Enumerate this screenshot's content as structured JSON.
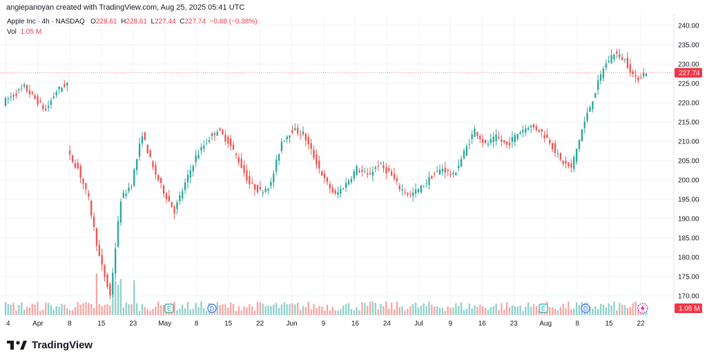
{
  "caption": "angiepanoyan created with TradingView.com, Aug 25, 2025 05:41 UTC",
  "legend": {
    "symbol": "Apple Inc · 4h · NASDAQ",
    "o_label": "O",
    "o": "228.61",
    "h_label": "H",
    "h": "228.61",
    "l_label": "L",
    "l": "227.44",
    "c_label": "C",
    "c": "227.74",
    "change": "−0.88 (−0.38%)",
    "vol_label": "Vol",
    "vol": "1.05 M"
  },
  "brand": {
    "name": "TradingView"
  },
  "colors": {
    "up": "#26a69a",
    "down": "#ef5350",
    "up_vol": "#8fd1c9",
    "down_vol": "#f5a6a4",
    "last": "#f23645"
  },
  "chart_data": {
    "type": "candlestick",
    "title": "Apple Inc · 4h · NASDAQ",
    "ylim": [
      165,
      243
    ],
    "y_ticks": [
      170,
      175,
      180,
      185,
      190,
      195,
      200,
      205,
      210,
      215,
      220,
      225,
      230,
      235,
      240
    ],
    "y_tick_labels": [
      "170.00",
      "175.00",
      "180.00",
      "185.00",
      "190.00",
      "195.00",
      "200.00",
      "205.00",
      "210.00",
      "215.00",
      "220.00",
      "225.00",
      "230.00",
      "235.00",
      "240.00"
    ],
    "x_ticks": [
      "4",
      "Apr",
      "8",
      "15",
      "23",
      "May",
      "8",
      "15",
      "22",
      "Jun",
      "9",
      "16",
      "24",
      "Jul",
      "9",
      "16",
      "23",
      "Aug",
      "8",
      "15",
      "22"
    ],
    "last_price": 227.74,
    "last_price_label": "227.74",
    "last_volume_label": "1.05 M",
    "event_markers": [
      {
        "label": "E",
        "date": "May 1"
      },
      {
        "label": "D",
        "date": "May 12"
      },
      {
        "label": "E",
        "date": "Jul 31"
      },
      {
        "label": "D",
        "date": "Aug 11"
      }
    ],
    "anchors": [
      [
        220,
        222
      ],
      [
        222,
        224
      ],
      [
        224,
        221
      ],
      [
        221,
        218
      ],
      [
        218,
        223
      ],
      [
        223,
        225
      ],
      [
        207,
        203
      ],
      [
        203,
        195
      ],
      [
        195,
        180
      ],
      [
        180,
        170
      ],
      [
        170,
        195
      ],
      [
        195,
        199
      ],
      [
        199,
        212
      ],
      [
        212,
        203
      ],
      [
        203,
        197
      ],
      [
        197,
        192
      ],
      [
        192,
        199
      ],
      [
        199,
        206
      ],
      [
        206,
        210
      ],
      [
        210,
        213
      ],
      [
        213,
        210
      ],
      [
        210,
        205
      ],
      [
        205,
        199
      ],
      [
        199,
        197
      ],
      [
        197,
        199
      ],
      [
        199,
        210
      ],
      [
        210,
        213
      ],
      [
        213,
        212
      ],
      [
        212,
        206
      ],
      [
        206,
        200
      ],
      [
        200,
        196
      ],
      [
        196,
        199
      ],
      [
        199,
        203
      ],
      [
        203,
        201
      ],
      [
        201,
        204
      ],
      [
        204,
        202
      ],
      [
        202,
        198
      ],
      [
        198,
        196
      ],
      [
        196,
        198
      ],
      [
        198,
        201
      ],
      [
        201,
        203
      ],
      [
        203,
        201
      ],
      [
        201,
        207
      ],
      [
        207,
        213
      ],
      [
        213,
        209
      ],
      [
        209,
        211
      ],
      [
        211,
        209
      ],
      [
        209,
        212
      ],
      [
        212,
        214
      ],
      [
        214,
        213
      ],
      [
        213,
        210
      ],
      [
        210,
        205
      ],
      [
        205,
        203
      ],
      [
        203,
        213
      ],
      [
        213,
        221
      ],
      [
        221,
        229
      ],
      [
        229,
        233
      ],
      [
        233,
        231
      ],
      [
        231,
        226
      ],
      [
        226,
        228
      ]
    ]
  }
}
